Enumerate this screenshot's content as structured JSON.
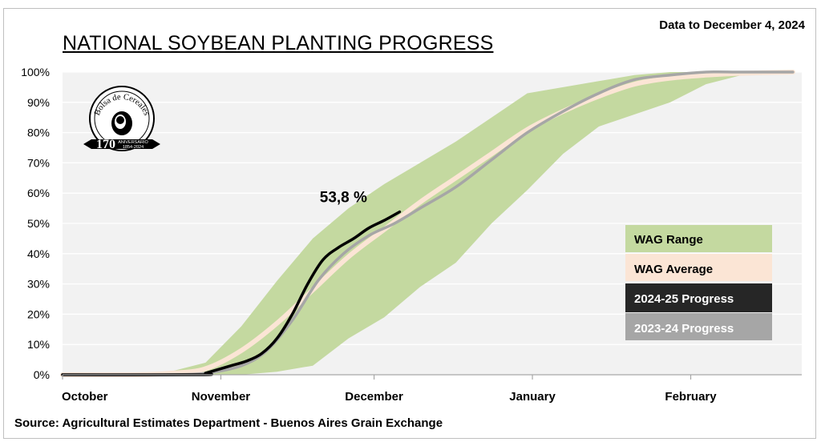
{
  "header": {
    "title": "NATIONAL SOYBEAN PLANTING PROGRESS",
    "date_note": "Data to December 4, 2024"
  },
  "footer": {
    "source": "Source: Agricultural Estimates Department - Buenos Aires Grain Exchange"
  },
  "logo": {
    "text_top": "Bolsa de Cereales",
    "number": "170",
    "text_side": "ANIVERSARIO",
    "years": "1854-2024",
    "icon": "bolsa-de-cereales-seal-icon"
  },
  "colors": {
    "plot_bg": "#f2f2f2",
    "grid": "#ffffff",
    "range": "#c4d9a0",
    "average": "#fbe5d5",
    "current": "#000000",
    "previous": "#a6a6a6",
    "legend_current_bg": "#262626",
    "legend_previous_bg": "#a6a6a6"
  },
  "chart_data": {
    "type": "area",
    "x_unit": "days since October 1 (Oct 1 = 0)",
    "categories": [
      "October",
      "November",
      "December",
      "January",
      "February"
    ],
    "category_positions": [
      0,
      31,
      61,
      92,
      123
    ],
    "xlim": [
      0,
      143
    ],
    "ylim": [
      0,
      100
    ],
    "yticks": [
      0,
      10,
      20,
      30,
      40,
      50,
      60,
      70,
      80,
      90,
      100
    ],
    "y_format": "percent",
    "grid": true,
    "legend_placement": "bottom-right",
    "annotation": {
      "text": "53,8 %",
      "x": 55,
      "y": 57
    },
    "legend": [
      {
        "label": "WAG Range",
        "key": "range"
      },
      {
        "label": "WAG Average",
        "key": "average"
      },
      {
        "label": "2024-25 Progress",
        "key": "current"
      },
      {
        "label": "2023-24 Progress",
        "key": "previous"
      }
    ],
    "series": [
      {
        "name": "WAG Range",
        "kind": "band",
        "x": [
          0,
          14,
          21,
          28,
          35,
          42,
          49,
          56,
          63,
          70,
          77,
          84,
          91,
          98,
          105,
          112,
          119,
          126,
          133,
          143
        ],
        "upper": [
          0,
          0,
          1,
          4,
          16,
          31,
          45,
          55,
          63,
          70,
          77,
          85,
          93,
          95,
          97,
          99,
          100,
          100,
          100,
          100
        ],
        "lower": [
          0,
          0,
          0,
          0,
          0,
          1,
          3,
          12,
          19,
          29,
          37,
          50,
          61,
          73,
          82,
          86,
          90,
          96,
          99,
          100
        ]
      },
      {
        "name": "WAG Average",
        "kind": "line",
        "x": [
          0,
          14,
          21,
          28,
          35,
          42,
          49,
          56,
          63,
          70,
          77,
          84,
          91,
          98,
          105,
          112,
          119,
          126,
          133,
          143
        ],
        "y": [
          0,
          0,
          0.5,
          2,
          8,
          17,
          28,
          39,
          48,
          57,
          65,
          73,
          81,
          87,
          92,
          96,
          98,
          99,
          99.6,
          100
        ]
      },
      {
        "name": "2023-24 Progress",
        "kind": "line",
        "x": [
          0,
          14,
          21,
          28,
          35,
          40,
          45,
          50,
          55,
          60,
          65,
          70,
          77,
          84,
          91,
          98,
          105,
          112,
          119,
          126,
          133,
          143
        ],
        "y": [
          0,
          0,
          0,
          0.5,
          3,
          8,
          18,
          31,
          40,
          46,
          50,
          55,
          62,
          71,
          80,
          87,
          93,
          97.5,
          99,
          100,
          100,
          100
        ]
      },
      {
        "name": "2024-25 Progress",
        "kind": "line",
        "x": [
          0,
          27,
          28,
          30,
          33,
          36,
          39,
          42,
          45,
          48,
          51,
          54,
          57,
          60,
          63,
          66
        ],
        "y": [
          0,
          0,
          0.5,
          1.5,
          3,
          4.5,
          7,
          12,
          20,
          30,
          38,
          42,
          45,
          48.5,
          51,
          53.8
        ]
      }
    ]
  }
}
